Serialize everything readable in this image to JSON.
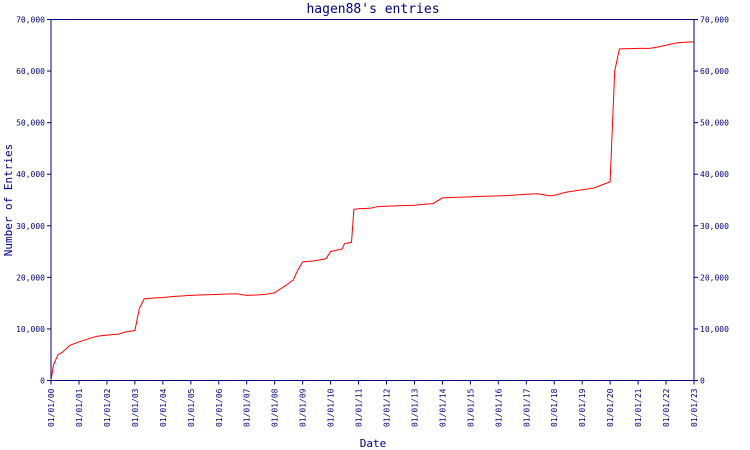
{
  "chart_data": {
    "type": "line",
    "title": "hagen88's entries",
    "xlabel": "Date",
    "ylabel": "Number of Entries",
    "ylim": [
      0,
      70000
    ],
    "yticks": [
      0,
      10000,
      20000,
      30000,
      40000,
      50000,
      60000,
      70000
    ],
    "ytick_labels": [
      "0",
      "10,000",
      "20,000",
      "30,000",
      "40,000",
      "50,000",
      "60,000",
      "70,000"
    ],
    "xtick_labels": [
      "01/01/00",
      "01/01/01",
      "01/01/02",
      "01/01/03",
      "01/01/04",
      "01/01/05",
      "01/01/06",
      "01/01/07",
      "01/01/08",
      "01/01/09",
      "01/01/10",
      "01/01/11",
      "01/01/12",
      "01/01/13",
      "01/01/14",
      "01/01/15",
      "01/01/16",
      "01/01/17",
      "01/01/18",
      "01/01/19",
      "01/01/20",
      "01/01/21",
      "01/01/22",
      "01/01/23"
    ],
    "xlim": [
      "2000-01-01",
      "2023-01-01"
    ],
    "grid": false,
    "secondary_y_axis": true,
    "series": [
      {
        "color": "#ff0000",
        "x": [
          "2000-01-01",
          "2000-02-01",
          "2000-04-01",
          "2000-06-01",
          "2000-09-01",
          "2001-01-01",
          "2001-06-01",
          "2001-09-01",
          "2002-01-01",
          "2002-06-01",
          "2002-09-01",
          "2003-01-01",
          "2003-03-01",
          "2003-05-01",
          "2003-09-01",
          "2004-01-01",
          "2004-06-01",
          "2005-01-01",
          "2005-06-01",
          "2006-01-01",
          "2006-06-01",
          "2006-09-01",
          "2007-01-01",
          "2007-06-01",
          "2007-09-01",
          "2008-01-01",
          "2008-06-01",
          "2008-09-01",
          "2008-11-01",
          "2009-01-01",
          "2009-06-01",
          "2009-11-01",
          "2010-01-01",
          "2010-06-01",
          "2010-07-01",
          "2010-10-01",
          "2010-11-01",
          "2011-01-01",
          "2011-06-01",
          "2011-09-01",
          "2012-01-01",
          "2012-06-01",
          "2013-01-01",
          "2013-06-01",
          "2013-09-01",
          "2014-01-01",
          "2014-06-01",
          "2015-01-01",
          "2015-06-01",
          "2016-01-01",
          "2016-06-01",
          "2017-01-01",
          "2017-06-01",
          "2017-11-01",
          "2018-01-01",
          "2018-06-01",
          "2019-01-01",
          "2019-06-01",
          "2019-10-01",
          "2020-01-01",
          "2020-03-01",
          "2020-05-01",
          "2021-01-01",
          "2021-06-01",
          "2021-09-01",
          "2022-01-01",
          "2022-06-01",
          "2023-01-01"
        ],
        "y": [
          0,
          3000,
          5000,
          5500,
          6800,
          7500,
          8200,
          8600,
          8800,
          9000,
          9400,
          9700,
          14000,
          15800,
          16000,
          16100,
          16300,
          16500,
          16600,
          16700,
          16800,
          16800,
          16500,
          16600,
          16700,
          17000,
          18500,
          19500,
          21500,
          23000,
          23200,
          23600,
          25000,
          25500,
          26500,
          26800,
          33200,
          33300,
          33400,
          33700,
          33800,
          33900,
          34000,
          34200,
          34300,
          35400,
          35500,
          35600,
          35700,
          35800,
          35900,
          36100,
          36200,
          35800,
          35900,
          36500,
          37000,
          37300,
          38000,
          38500,
          60000,
          64300,
          64400,
          64400,
          64600,
          65000,
          65500,
          65700
        ]
      }
    ]
  }
}
